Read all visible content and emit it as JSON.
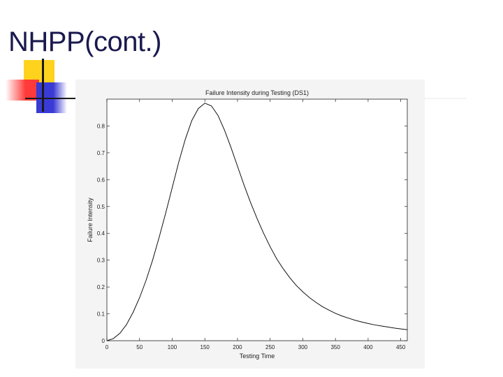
{
  "slide": {
    "title": "NHPP(cont.)"
  },
  "colors": {
    "title": "#1a1a4e",
    "deco_yellow": "#ffd21e",
    "deco_red": "#ff3a3a",
    "deco_blue": "#3a3ad6",
    "curve": "#111111"
  },
  "chart_data": {
    "type": "line",
    "title": "Failure Intensity during Testing (DS1)",
    "xlabel": "Testing Time",
    "ylabel": "Failure Intensity",
    "xlim": [
      0,
      460
    ],
    "ylim": [
      0,
      0.9
    ],
    "x_ticks": [
      0,
      50,
      100,
      150,
      200,
      250,
      300,
      350,
      400,
      450
    ],
    "y_ticks": [
      0,
      0.1,
      0.2,
      0.3,
      0.4,
      0.5,
      0.6,
      0.7,
      0.8
    ],
    "grid": false,
    "series": [
      {
        "x": [
          0,
          10,
          20,
          30,
          40,
          50,
          60,
          70,
          80,
          90,
          100,
          110,
          120,
          130,
          140,
          150,
          160,
          170,
          180,
          190,
          200,
          210,
          220,
          230,
          240,
          250,
          260,
          270,
          280,
          290,
          300,
          310,
          320,
          330,
          340,
          350,
          360,
          370,
          380,
          390,
          400,
          410,
          420,
          430,
          440,
          450,
          460
        ],
        "y": [
          0.0,
          0.008,
          0.028,
          0.06,
          0.105,
          0.16,
          0.225,
          0.3,
          0.385,
          0.475,
          0.57,
          0.665,
          0.75,
          0.82,
          0.865,
          0.885,
          0.875,
          0.84,
          0.785,
          0.72,
          0.65,
          0.58,
          0.515,
          0.455,
          0.4,
          0.35,
          0.305,
          0.268,
          0.235,
          0.206,
          0.182,
          0.161,
          0.143,
          0.127,
          0.114,
          0.102,
          0.092,
          0.084,
          0.076,
          0.07,
          0.064,
          0.059,
          0.055,
          0.051,
          0.047,
          0.044,
          0.041
        ]
      }
    ]
  }
}
